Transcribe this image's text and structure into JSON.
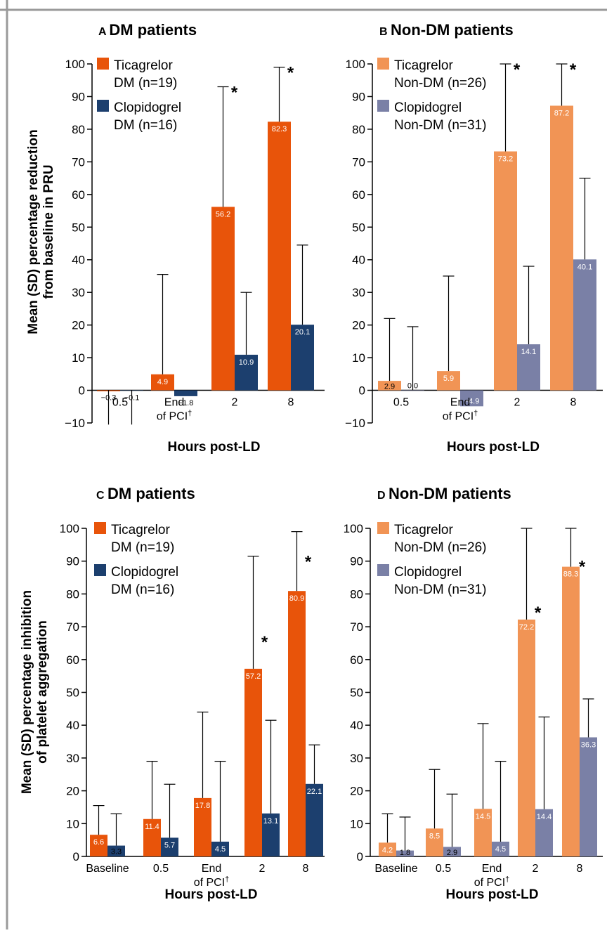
{
  "ylabel_top": [
    "Mean (SD) percentage reduction",
    "from baseline in PRU"
  ],
  "ylabel_bottom": [
    "Mean (SD) percentage inhibition",
    "of platelet aggregation"
  ],
  "colors": {
    "ticagrelor_dm": "#e8540a",
    "clopidogrel_dm": "#1c3f6e",
    "ticagrelor_nondm": "#f19455",
    "clopidogrel_nondm": "#7a80a6",
    "border": "#9a9a9a"
  },
  "chart_data": [
    {
      "type": "bar",
      "panel": "A",
      "title": "DM patients",
      "xlabel": "Hours post-LD",
      "ylabel": "Mean (SD) percentage reduction from baseline in PRU",
      "ylim": [
        -10,
        100
      ],
      "yticks": [
        -10,
        0,
        10,
        20,
        30,
        40,
        50,
        60,
        70,
        80,
        90,
        100
      ],
      "yticklabels": [
        "−10",
        "0",
        "10",
        "20",
        "30",
        "40",
        "50",
        "60",
        "70",
        "80",
        "90",
        "100"
      ],
      "categories": [
        [
          "0.5"
        ],
        [
          "End",
          "of PCI†"
        ],
        [
          "2"
        ],
        [
          "8"
        ]
      ],
      "series": [
        {
          "name": "Ticagrelor",
          "name2": "DM (n=19)",
          "values": [
            -0.3,
            4.9,
            56.2,
            82.3
          ],
          "err_top": [
            -0.3,
            35.5,
            93,
            99
          ],
          "labels": [
            "−0.3",
            "4.9",
            "56.2",
            "82.3"
          ]
        },
        {
          "name": "Clopidogrel",
          "name2": "DM (n=16)",
          "values": [
            -0.1,
            -1.8,
            10.9,
            20.1
          ],
          "err_top": [
            -0.1,
            -1.8,
            30,
            44.5
          ],
          "labels": [
            "−0.1",
            "−1.8",
            "10.9",
            "20.1"
          ]
        }
      ],
      "err_bottom": [
        [
          -10.5,
          null,
          null,
          null
        ],
        [
          -10.5,
          null,
          null,
          null
        ]
      ],
      "stars": [
        {
          "category": 2,
          "value": 93
        },
        {
          "category": 3,
          "value": 99
        }
      ],
      "legend": "top-left"
    },
    {
      "type": "bar",
      "panel": "B",
      "title": "Non-DM patients",
      "xlabel": "Hours post-LD",
      "ylabel": "",
      "ylim": [
        -10,
        100
      ],
      "yticks": [
        -10,
        0,
        10,
        20,
        30,
        40,
        50,
        60,
        70,
        80,
        90,
        100
      ],
      "yticklabels": [
        "−10",
        "0",
        "10",
        "20",
        "30",
        "40",
        "50",
        "60",
        "70",
        "80",
        "90",
        "100"
      ],
      "categories": [
        [
          "0.5"
        ],
        [
          "End",
          "of PCI†"
        ],
        [
          "2"
        ],
        [
          "8"
        ]
      ],
      "series": [
        {
          "name": "Ticagrelor",
          "name2": "Non-DM (n=26)",
          "values": [
            2.9,
            5.9,
            73.2,
            87.2
          ],
          "err_top": [
            22,
            35,
            100,
            100
          ],
          "labels": [
            "2.9",
            "5.9",
            "73.2",
            "87.2"
          ]
        },
        {
          "name": "Clopidogrel",
          "name2": "Non-DM (n=31)",
          "values": [
            0.0,
            -4.9,
            14.1,
            40.1
          ],
          "err_top": [
            19.5,
            -4.9,
            38,
            65
          ],
          "labels": [
            "0.0",
            "−4.9",
            "14.1",
            "40.1"
          ]
        }
      ],
      "err_bottom": [
        [
          null,
          null,
          null,
          null
        ],
        [
          null,
          null,
          null,
          null
        ]
      ],
      "stars": [
        {
          "category": 2,
          "value": 100
        },
        {
          "category": 3,
          "value": 100
        }
      ],
      "legend": "top-left"
    },
    {
      "type": "bar",
      "panel": "C",
      "title": "DM patients",
      "xlabel": "Hours post-LD",
      "ylabel": "Mean (SD) percentage inhibition of platelet aggregation",
      "ylim": [
        0,
        100
      ],
      "yticks": [
        0,
        10,
        20,
        30,
        40,
        50,
        60,
        70,
        80,
        90,
        100
      ],
      "yticklabels": [
        "0",
        "10",
        "20",
        "30",
        "40",
        "50",
        "60",
        "70",
        "80",
        "90",
        "100"
      ],
      "categories": [
        [
          "Baseline"
        ],
        [
          "0.5"
        ],
        [
          "End",
          "of PCI†"
        ],
        [
          "2"
        ],
        [
          "8"
        ]
      ],
      "series": [
        {
          "name": "Ticagrelor",
          "name2": "DM (n=19)",
          "values": [
            6.6,
            11.4,
            17.8,
            57.2,
            80.9
          ],
          "err_top": [
            15.5,
            29,
            44,
            91.5,
            99
          ],
          "labels": [
            "6.6",
            "11.4",
            "17.8",
            "57.2",
            "80.9"
          ]
        },
        {
          "name": "Clopidogrel",
          "name2": "DM (n=16)",
          "values": [
            3.3,
            5.7,
            4.5,
            13.1,
            22.1
          ],
          "err_top": [
            13,
            22,
            29,
            41.5,
            34
          ],
          "labels": [
            "3.3",
            "5.7",
            "4.5",
            "13.1",
            "22.1"
          ]
        }
      ],
      "err_bottom": [
        [
          null,
          null,
          null,
          null,
          null
        ],
        [
          null,
          null,
          null,
          null,
          null
        ]
      ],
      "stars": [
        {
          "category": 3,
          "value": 67
        },
        {
          "category": 4,
          "value": 91.5
        }
      ],
      "legend": "top-left"
    },
    {
      "type": "bar",
      "panel": "D",
      "title": "Non-DM patients",
      "xlabel": "Hours post-LD",
      "ylabel": "",
      "ylim": [
        0,
        100
      ],
      "yticks": [
        0,
        10,
        20,
        30,
        40,
        50,
        60,
        70,
        80,
        90,
        100
      ],
      "yticklabels": [
        "0",
        "10",
        "20",
        "30",
        "40",
        "50",
        "60",
        "70",
        "80",
        "90",
        "100"
      ],
      "categories": [
        [
          "Baseline"
        ],
        [
          "0.5"
        ],
        [
          "End",
          "of PCI†"
        ],
        [
          "2"
        ],
        [
          "8"
        ]
      ],
      "series": [
        {
          "name": "Ticagrelor",
          "name2": "Non-DM (n=26)",
          "values": [
            4.2,
            8.5,
            14.5,
            72.2,
            88.3
          ],
          "err_top": [
            13,
            26.5,
            40.5,
            100,
            100
          ],
          "labels": [
            "4.2",
            "8.5",
            "14.5",
            "72.2",
            "88.3"
          ]
        },
        {
          "name": "Clopidogrel",
          "name2": "Non-DM (n=31)",
          "values": [
            1.8,
            2.9,
            4.5,
            14.4,
            36.3
          ],
          "err_top": [
            12,
            19,
            29,
            42.5,
            48
          ],
          "labels": [
            "1.8",
            "2.9",
            "4.5",
            "14.4",
            "36.3"
          ]
        }
      ],
      "err_bottom": [
        [
          null,
          null,
          null,
          null,
          null
        ],
        [
          null,
          null,
          null,
          null,
          null
        ]
      ],
      "stars": [
        {
          "category": 3,
          "value": 76
        },
        {
          "category": 4,
          "value": 90
        }
      ],
      "legend": "top-left"
    }
  ]
}
